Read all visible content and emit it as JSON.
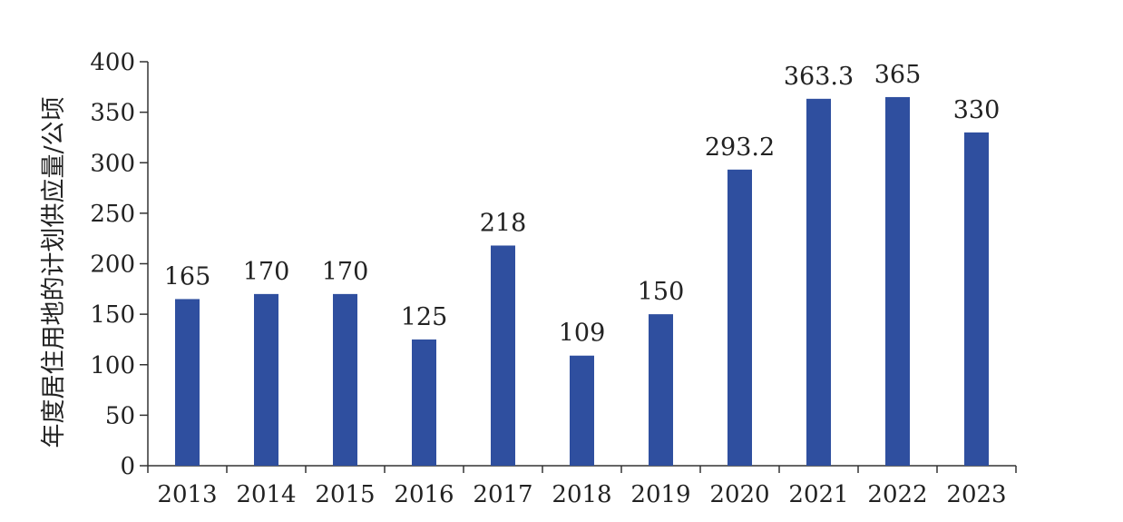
{
  "chart_data": {
    "type": "bar",
    "title": "",
    "xlabel": "",
    "ylabel": "年度居住用地的计划供应量/公顷",
    "categories": [
      "2013",
      "2014",
      "2015",
      "2016",
      "2017",
      "2018",
      "2019",
      "2020",
      "2021",
      "2022",
      "2023"
    ],
    "values": [
      165,
      170,
      170,
      125,
      218,
      109,
      150,
      293.2,
      363.3,
      365,
      330
    ],
    "value_labels": [
      "165",
      "170",
      "170",
      "125",
      "218",
      "109",
      "150",
      "293.2",
      "363.3",
      "365",
      "330"
    ],
    "ylim": [
      0,
      400
    ],
    "yticks": [
      0,
      50,
      100,
      150,
      200,
      250,
      300,
      350,
      400
    ],
    "grid": false,
    "legend": "none",
    "bar_color": "#2f4f9f",
    "axis_color": "#333333"
  }
}
